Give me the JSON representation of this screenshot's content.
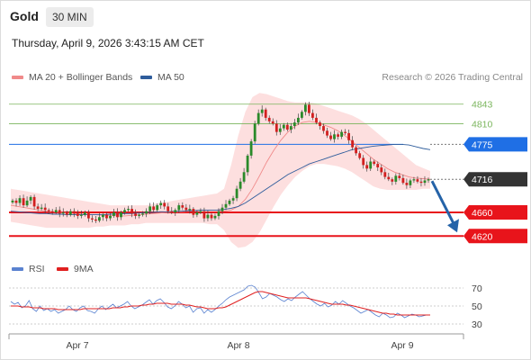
{
  "header": {
    "instrument": "Gold",
    "timeframe": "30 MIN",
    "datetime": "Thursday, April 9, 2026 3:43:15 AM CET"
  },
  "legend_main": [
    {
      "label": "MA 20 + Bollinger Bands",
      "color": "#f08a8a"
    },
    {
      "label": "MA 50",
      "color": "#2f5d9c"
    }
  ],
  "legend_rsi": [
    {
      "label": "RSI",
      "color": "#5a82d0"
    },
    {
      "label": "9MA",
      "color": "#e02020"
    }
  ],
  "credit": "Research © 2026 Trading Central",
  "colors": {
    "green_level": "#7ab55c",
    "blue_level": "#1f6fe5",
    "red_level": "#e8141b",
    "current_price": "#333333",
    "arrow": "#2563a8",
    "candle_up": "#2a8a2a",
    "candle_down": "#d21f1f"
  },
  "chart_data": [
    {
      "type": "candlestick",
      "title": "",
      "x_ticks": [
        "Apr 7",
        "Apr 8",
        "Apr 9"
      ],
      "levels": [
        {
          "value": 4843,
          "label": "4843",
          "style": "green-line"
        },
        {
          "value": 4810,
          "label": "4810",
          "style": "green-line"
        },
        {
          "value": 4775,
          "label": "4775",
          "style": "blue-box"
        },
        {
          "value": 4716,
          "label": "4716",
          "style": "dark-box"
        },
        {
          "value": 4660,
          "label": "4660",
          "style": "red-box"
        },
        {
          "value": 4620,
          "label": "4620",
          "style": "red-box"
        }
      ],
      "current_price": 4716,
      "forecast_arrow": {
        "from": 4716,
        "to": 4620,
        "direction": "down"
      },
      "ylim": [
        4590,
        4870
      ],
      "close_path": [
        4680,
        4676,
        4684,
        4672,
        4680,
        4686,
        4670,
        4666,
        4668,
        4664,
        4662,
        4660,
        4664,
        4658,
        4660,
        4656,
        4662,
        4658,
        4654,
        4656,
        4660,
        4650,
        4648,
        4646,
        4652,
        4656,
        4650,
        4654,
        4660,
        4652,
        4660,
        4664,
        4666,
        4658,
        4654,
        4656,
        4658,
        4662,
        4670,
        4664,
        4672,
        4676,
        4670,
        4662,
        4660,
        4664,
        4672,
        4668,
        4664,
        4666,
        4656,
        4660,
        4662,
        4650,
        4656,
        4650,
        4654,
        4662,
        4668,
        4674,
        4680,
        4684,
        4700,
        4712,
        4728,
        4756,
        4780,
        4810,
        4828,
        4834,
        4820,
        4814,
        4810,
        4796,
        4802,
        4808,
        4800,
        4806,
        4812,
        4820,
        4830,
        4842,
        4828,
        4820,
        4812,
        4806,
        4798,
        4790,
        4784,
        4792,
        4788,
        4796,
        4794,
        4782,
        4770,
        4760,
        4752,
        4740,
        4734,
        4746,
        4742,
        4736,
        4728,
        4720,
        4716,
        4712,
        4722,
        4718,
        4710,
        4706,
        4714,
        4716,
        4712,
        4710,
        4714,
        4716
      ],
      "ma20_path": [
        4672,
        4670,
        4668,
        4666,
        4664,
        4662,
        4661,
        4660,
        4659,
        4658,
        4657,
        4656,
        4656,
        4655,
        4655,
        4654,
        4654,
        4655,
        4656,
        4657,
        4658,
        4659,
        4660,
        4661,
        4661,
        4662,
        4663,
        4664,
        4664,
        4664,
        4662,
        4664,
        4670,
        4682,
        4700,
        4722,
        4745,
        4765,
        4782,
        4796,
        4806,
        4812,
        4814,
        4812,
        4808,
        4804,
        4798,
        4790,
        4780,
        4770,
        4760,
        4750,
        4742,
        4734,
        4728,
        4724,
        4720,
        4718,
        4717,
        4716
      ],
      "bb_upper_path": [
        4700,
        4698,
        4696,
        4694,
        4692,
        4690,
        4688,
        4686,
        4684,
        4682,
        4680,
        4678,
        4676,
        4674,
        4672,
        4672,
        4672,
        4672,
        4672,
        4672,
        4674,
        4676,
        4678,
        4680,
        4682,
        4684,
        4686,
        4688,
        4690,
        4692,
        4700,
        4740,
        4790,
        4830,
        4855,
        4862,
        4860,
        4856,
        4852,
        4848,
        4846,
        4846,
        4846,
        4844,
        4840,
        4836,
        4832,
        4828,
        4824,
        4818,
        4810,
        4800,
        4790,
        4780,
        4770,
        4760,
        4750,
        4740,
        4735,
        4730
      ],
      "bb_lower_path": [
        4644,
        4642,
        4640,
        4638,
        4636,
        4634,
        4634,
        4634,
        4634,
        4634,
        4634,
        4634,
        4636,
        4636,
        4638,
        4638,
        4638,
        4640,
        4640,
        4642,
        4642,
        4642,
        4642,
        4642,
        4642,
        4642,
        4642,
        4642,
        4640,
        4640,
        4630,
        4610,
        4600,
        4602,
        4610,
        4626,
        4648,
        4670,
        4690,
        4706,
        4720,
        4730,
        4738,
        4742,
        4742,
        4740,
        4738,
        4734,
        4728,
        4720,
        4712,
        4704,
        4700,
        4698,
        4698,
        4698,
        4698,
        4698,
        4700,
        4700
      ],
      "ma50_path": [
        4662,
        4661,
        4660,
        4659,
        4658,
        4658,
        4657,
        4657,
        4656,
        4656,
        4656,
        4656,
        4656,
        4656,
        4657,
        4657,
        4658,
        4658,
        4659,
        4660,
        4660,
        4661,
        4661,
        4662,
        4662,
        4663,
        4663,
        4664,
        4664,
        4664,
        4665,
        4667,
        4670,
        4676,
        4684,
        4692,
        4700,
        4708,
        4716,
        4724,
        4730,
        4736,
        4742,
        4746,
        4750,
        4754,
        4758,
        4762,
        4766,
        4768,
        4770,
        4772,
        4773,
        4774,
        4775,
        4775,
        4774,
        4771,
        4768,
        4766
      ]
    },
    {
      "type": "line",
      "title": "",
      "y_ticks": [
        70,
        50,
        30
      ],
      "ylim": [
        20,
        80
      ],
      "series": [
        {
          "name": "RSI",
          "values": [
            55,
            52,
            54,
            48,
            50,
            56,
            47,
            44,
            50,
            45,
            47,
            44,
            46,
            42,
            44,
            46,
            50,
            46,
            44,
            48,
            50,
            45,
            44,
            42,
            47,
            50,
            46,
            49,
            52,
            48,
            50,
            52,
            55,
            50,
            47,
            49,
            51,
            54,
            57,
            52,
            56,
            58,
            54,
            49,
            47,
            50,
            55,
            52,
            48,
            50,
            43,
            47,
            48,
            42,
            46,
            43,
            46,
            50,
            53,
            57,
            60,
            62,
            64,
            66,
            68,
            72,
            73,
            71,
            65,
            58,
            60,
            64,
            62,
            60,
            57,
            55,
            58,
            56,
            60,
            63,
            66,
            62,
            58,
            55,
            52,
            50,
            53,
            49,
            51,
            55,
            52,
            56,
            53,
            50,
            48,
            45,
            42,
            44,
            46,
            43,
            40,
            38,
            42,
            40,
            37,
            38,
            42,
            40,
            37,
            39,
            41,
            40,
            38,
            39,
            40,
            40
          ]
        },
        {
          "name": "9MA",
          "values": [
            50,
            50,
            50,
            49,
            49,
            49,
            48,
            48,
            48,
            47,
            47,
            47,
            47,
            46,
            46,
            46,
            46,
            46,
            46,
            46,
            47,
            47,
            47,
            47,
            47,
            47,
            47,
            47,
            48,
            48,
            48,
            49,
            49,
            50,
            50,
            50,
            51,
            51,
            52,
            52,
            53,
            53,
            53,
            53,
            52,
            52,
            52,
            52,
            51,
            51,
            50,
            49,
            49,
            48,
            47,
            47,
            47,
            48,
            48,
            49,
            51,
            53,
            55,
            57,
            59,
            61,
            63,
            65,
            66,
            66,
            65,
            64,
            63,
            62,
            61,
            60,
            59,
            59,
            59,
            59,
            59,
            59,
            58,
            57,
            56,
            55,
            54,
            53,
            52,
            52,
            52,
            52,
            51,
            51,
            50,
            49,
            48,
            47,
            46,
            45,
            44,
            43,
            42,
            42,
            41,
            41,
            40,
            40,
            40,
            40,
            40,
            40,
            40,
            40,
            40,
            40
          ]
        }
      ]
    }
  ]
}
